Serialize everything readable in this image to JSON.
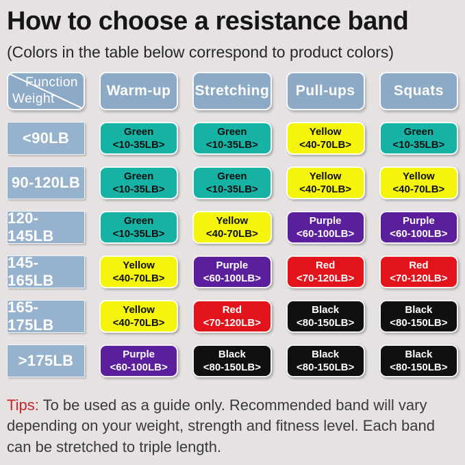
{
  "title": "How to choose a resistance band",
  "subtitle": "(Colors in the table below correspond to product colors)",
  "corner": {
    "function_label": "Function",
    "weight_label": "Weight"
  },
  "chart_data": {
    "type": "table",
    "title": "How to choose a resistance band",
    "corner_top": "Function",
    "corner_bottom": "Weight",
    "columns": [
      "Warm-up",
      "Stretching",
      "Pull-ups",
      "Squats"
    ],
    "rows": [
      {
        "weight": "<90LB",
        "cells": [
          {
            "color": "green",
            "label": "Green",
            "range": "<10-35LB>"
          },
          {
            "color": "green",
            "label": "Green",
            "range": "<10-35LB>"
          },
          {
            "color": "yellow",
            "label": "Yellow",
            "range": "<40-70LB>"
          },
          {
            "color": "green",
            "label": "Green",
            "range": "<10-35LB>"
          }
        ]
      },
      {
        "weight": "90-120LB",
        "cells": [
          {
            "color": "green",
            "label": "Green",
            "range": "<10-35LB>"
          },
          {
            "color": "green",
            "label": "Green",
            "range": "<10-35LB>"
          },
          {
            "color": "yellow",
            "label": "Yellow",
            "range": "<40-70LB>"
          },
          {
            "color": "yellow",
            "label": "Yellow",
            "range": "<40-70LB>"
          }
        ]
      },
      {
        "weight": "120-145LB",
        "cells": [
          {
            "color": "green",
            "label": "Green",
            "range": "<10-35LB>"
          },
          {
            "color": "yellow",
            "label": "Yellow",
            "range": "<40-70LB>"
          },
          {
            "color": "purple",
            "label": "Purple",
            "range": "<60-100LB>"
          },
          {
            "color": "purple",
            "label": "Purple",
            "range": "<60-100LB>"
          }
        ]
      },
      {
        "weight": "145-165LB",
        "cells": [
          {
            "color": "yellow",
            "label": "Yellow",
            "range": "<40-70LB>"
          },
          {
            "color": "purple",
            "label": "Purple",
            "range": "<60-100LB>"
          },
          {
            "color": "red",
            "label": "Red",
            "range": "<70-120LB>"
          },
          {
            "color": "red",
            "label": "Red",
            "range": "<70-120LB>"
          }
        ]
      },
      {
        "weight": "165-175LB",
        "cells": [
          {
            "color": "yellow",
            "label": "Yellow",
            "range": "<40-70LB>"
          },
          {
            "color": "red",
            "label": "Red",
            "range": "<70-120LB>"
          },
          {
            "color": "black",
            "label": "Black",
            "range": "<80-150LB>"
          },
          {
            "color": "black",
            "label": "Black",
            "range": "<80-150LB>"
          }
        ]
      },
      {
        "weight": ">175LB",
        "cells": [
          {
            "color": "purple",
            "label": "Purple",
            "range": "<60-100LB>"
          },
          {
            "color": "black",
            "label": "Black",
            "range": "<80-150LB>"
          },
          {
            "color": "black",
            "label": "Black",
            "range": "<80-150LB>"
          },
          {
            "color": "black",
            "label": "Black",
            "range": "<80-150LB>"
          }
        ]
      }
    ]
  },
  "colors": {
    "header_blue": "#8ca9c6",
    "weight_blue": "#96b2cc",
    "green": "#16b3a5",
    "yellow": "#f4f40c",
    "purple": "#5b1f9d",
    "red": "#e2131b",
    "black": "#101010",
    "tips_red": "#c3262c"
  },
  "badge_text_colors": {
    "green": "#101010",
    "yellow": "#101010",
    "purple": "#ffffff",
    "red": "#ffffff",
    "black": "#ffffff"
  },
  "tips": {
    "label": "Tips:",
    "text": "To be used as a guide only. Recommended band will vary depending on your weight, strength and fitness level. Each band can be stretched to triple length."
  }
}
